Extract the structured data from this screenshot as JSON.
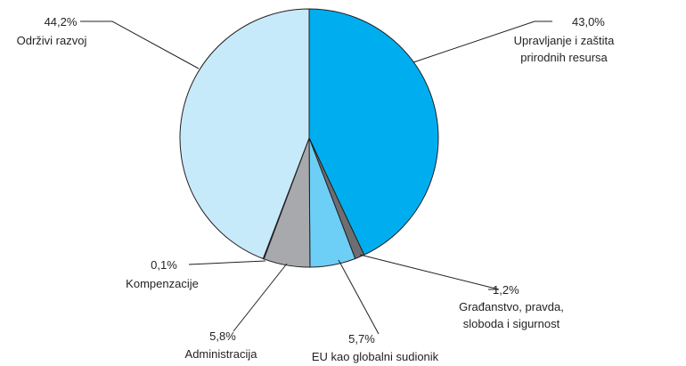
{
  "chart_data": {
    "type": "pie",
    "title": "",
    "slices": [
      {
        "pct_label": "43,0%",
        "value": 43.0,
        "label_lines": [
          "Upravljanje i zaštita",
          "prirodnih resursa"
        ],
        "color": "#00aeef"
      },
      {
        "pct_label": "1,2%",
        "value": 1.2,
        "label_lines": [
          "Građanstvo, pravda,",
          "sloboda i sigurnost"
        ],
        "color": "#6d6e71"
      },
      {
        "pct_label": "5,7%",
        "value": 5.7,
        "label_lines": [
          "EU kao globalni sudionik"
        ],
        "color": "#6dcff6"
      },
      {
        "pct_label": "5,8%",
        "value": 5.8,
        "label_lines": [
          "Administracija"
        ],
        "color": "#a7a9ac"
      },
      {
        "pct_label": "0,1%",
        "value": 0.1,
        "label_lines": [
          "Kompenzacije"
        ],
        "color": "#e6e7e8"
      },
      {
        "pct_label": "44,2%",
        "value": 44.2,
        "label_lines": [
          "Održivi razvoj"
        ],
        "color": "#c7eafb"
      }
    ]
  }
}
